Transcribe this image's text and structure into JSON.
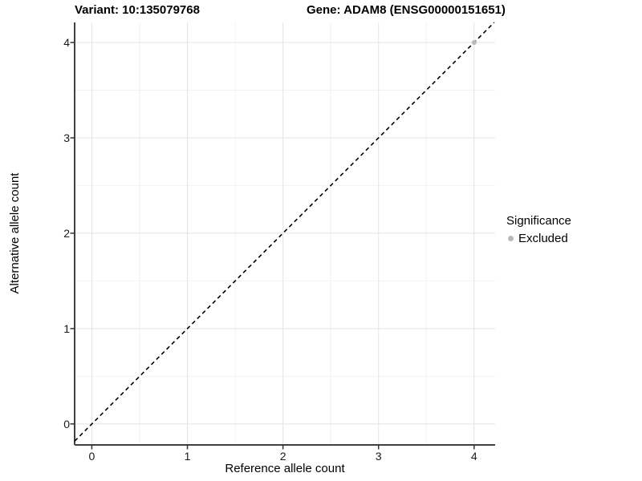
{
  "chart_data": {
    "type": "scatter",
    "title_left": "Variant: 10:135079768",
    "title_right": "Gene: ADAM8 (ENSG00000151651)",
    "xlabel": "Reference allele count",
    "ylabel": "Alternative allele count",
    "x_ticks": [
      0,
      1,
      2,
      3,
      4
    ],
    "y_ticks": [
      0,
      1,
      2,
      3,
      4
    ],
    "xlim": [
      -0.18,
      4.22
    ],
    "ylim": [
      -0.22,
      4.21
    ],
    "grid": {
      "major": true,
      "minor": true
    },
    "reference_line": {
      "kind": "identity",
      "slope": 1,
      "intercept": 0,
      "style": "dashed",
      "color": "#000000"
    },
    "series": [
      {
        "name": "Excluded",
        "marker": "circle",
        "color": "#b9b9b9",
        "points": [
          {
            "x": 4,
            "y": 4
          }
        ]
      }
    ],
    "legend": {
      "title": "Significance",
      "position": "right",
      "entries": [
        {
          "label": "Excluded",
          "color": "#b9b9b9",
          "marker": "circle"
        }
      ]
    }
  },
  "colors": {
    "background": "#ffffff",
    "grid_major": "#e4e4e4",
    "grid_minor": "#f2f2f2",
    "axis_line": "#404040",
    "tick_mark": "#333333",
    "text": "#000000"
  }
}
